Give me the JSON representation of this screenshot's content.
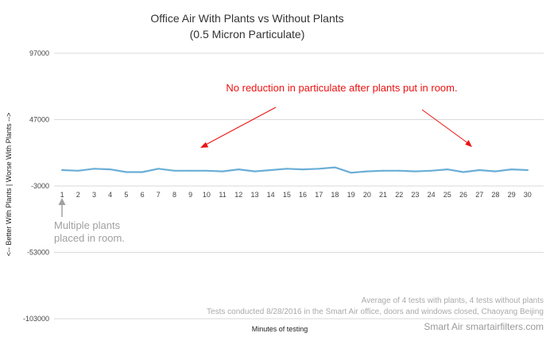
{
  "chart_data": {
    "type": "line",
    "title_line1": "Office Air With Plants vs Without Plants",
    "title_line2": "(0.5 Micron Particulate)",
    "xlabel": "Minutes of testing",
    "ylabel": "<-- Better With Plants | Worse With Plants -->",
    "ylim": [
      -103000,
      97000
    ],
    "yticks": [
      97000,
      47000,
      -3000,
      -53000,
      -103000
    ],
    "x": [
      1,
      2,
      3,
      4,
      5,
      6,
      7,
      8,
      9,
      10,
      11,
      12,
      13,
      14,
      15,
      16,
      17,
      18,
      19,
      20,
      21,
      22,
      23,
      24,
      25,
      26,
      27,
      28,
      29,
      30
    ],
    "series": [
      {
        "values": [
          9000,
          8500,
          10000,
          9500,
          7500,
          7500,
          10000,
          8500,
          8500,
          8500,
          8000,
          9500,
          8000,
          9000,
          10000,
          9500,
          10000,
          11000,
          7000,
          8000,
          8500,
          8500,
          8000,
          8500,
          9500,
          7500,
          9000,
          8000,
          9500,
          9000
        ],
        "color": "#6aaed6"
      }
    ],
    "grid": true,
    "annotations": {
      "red_text": "No reduction in particulate after plants put in room.",
      "gray_line1": "Multiple plants",
      "gray_line2": "placed in room.",
      "note_line1": "Average of 4 tests with plants, 4 tests without plants",
      "note_line2": "Tests conducted 8/28/2016 in the Smart Air office, doors and windows closed, Chaoyang Beijing",
      "brand": "Smart Air smartairfilters.com"
    }
  },
  "colors": {
    "line": "#6aaed6",
    "grid": "#d9d9d9",
    "annotation_red": "#ee1111",
    "annotation_gray": "#a0a0a0"
  }
}
